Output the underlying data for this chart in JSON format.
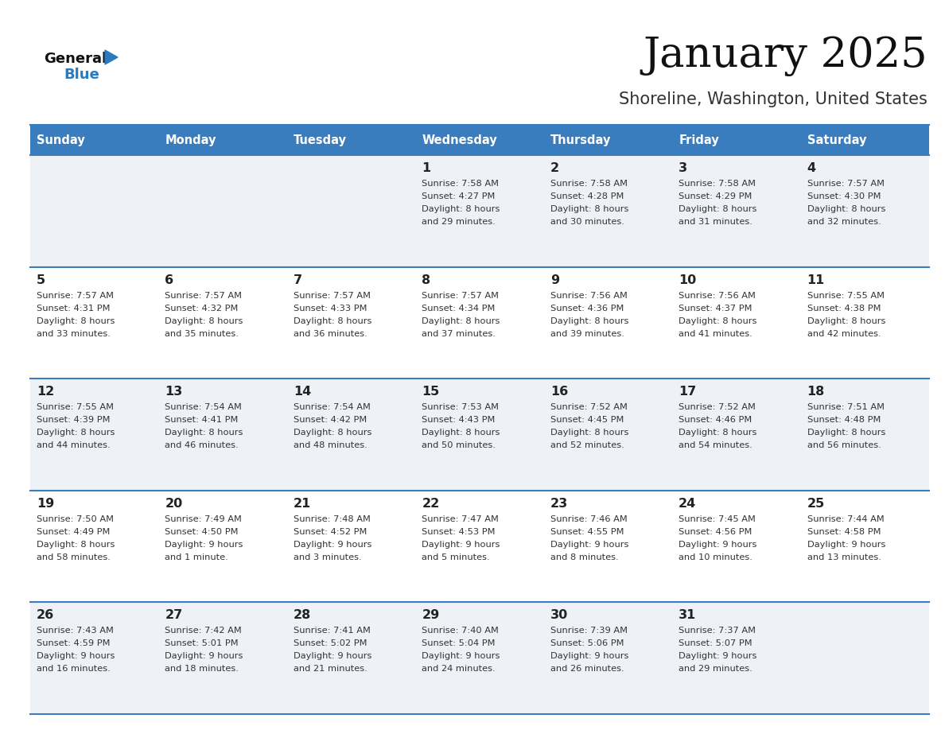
{
  "title": "January 2025",
  "subtitle": "Shoreline, Washington, United States",
  "days_of_week": [
    "Sunday",
    "Monday",
    "Tuesday",
    "Wednesday",
    "Thursday",
    "Friday",
    "Saturday"
  ],
  "header_bg": "#3a7dbf",
  "header_text": "#ffffff",
  "row_bg_odd": "#eef2f7",
  "row_bg_even": "#ffffff",
  "border_color": "#3a7dbf",
  "day_number_color": "#222222",
  "cell_text_color": "#333333",
  "title_color": "#111111",
  "subtitle_color": "#333333",
  "logo_general_color": "#111111",
  "logo_blue_color": "#2a7abf",
  "weeks": [
    [
      {
        "date": "",
        "sunrise": "",
        "sunset": "",
        "daylight_line1": "",
        "daylight_line2": ""
      },
      {
        "date": "",
        "sunrise": "",
        "sunset": "",
        "daylight_line1": "",
        "daylight_line2": ""
      },
      {
        "date": "",
        "sunrise": "",
        "sunset": "",
        "daylight_line1": "",
        "daylight_line2": ""
      },
      {
        "date": "1",
        "sunrise": "7:58 AM",
        "sunset": "4:27 PM",
        "daylight_line1": "Daylight: 8 hours",
        "daylight_line2": "and 29 minutes."
      },
      {
        "date": "2",
        "sunrise": "7:58 AM",
        "sunset": "4:28 PM",
        "daylight_line1": "Daylight: 8 hours",
        "daylight_line2": "and 30 minutes."
      },
      {
        "date": "3",
        "sunrise": "7:58 AM",
        "sunset": "4:29 PM",
        "daylight_line1": "Daylight: 8 hours",
        "daylight_line2": "and 31 minutes."
      },
      {
        "date": "4",
        "sunrise": "7:57 AM",
        "sunset": "4:30 PM",
        "daylight_line1": "Daylight: 8 hours",
        "daylight_line2": "and 32 minutes."
      }
    ],
    [
      {
        "date": "5",
        "sunrise": "7:57 AM",
        "sunset": "4:31 PM",
        "daylight_line1": "Daylight: 8 hours",
        "daylight_line2": "and 33 minutes."
      },
      {
        "date": "6",
        "sunrise": "7:57 AM",
        "sunset": "4:32 PM",
        "daylight_line1": "Daylight: 8 hours",
        "daylight_line2": "and 35 minutes."
      },
      {
        "date": "7",
        "sunrise": "7:57 AM",
        "sunset": "4:33 PM",
        "daylight_line1": "Daylight: 8 hours",
        "daylight_line2": "and 36 minutes."
      },
      {
        "date": "8",
        "sunrise": "7:57 AM",
        "sunset": "4:34 PM",
        "daylight_line1": "Daylight: 8 hours",
        "daylight_line2": "and 37 minutes."
      },
      {
        "date": "9",
        "sunrise": "7:56 AM",
        "sunset": "4:36 PM",
        "daylight_line1": "Daylight: 8 hours",
        "daylight_line2": "and 39 minutes."
      },
      {
        "date": "10",
        "sunrise": "7:56 AM",
        "sunset": "4:37 PM",
        "daylight_line1": "Daylight: 8 hours",
        "daylight_line2": "and 41 minutes."
      },
      {
        "date": "11",
        "sunrise": "7:55 AM",
        "sunset": "4:38 PM",
        "daylight_line1": "Daylight: 8 hours",
        "daylight_line2": "and 42 minutes."
      }
    ],
    [
      {
        "date": "12",
        "sunrise": "7:55 AM",
        "sunset": "4:39 PM",
        "daylight_line1": "Daylight: 8 hours",
        "daylight_line2": "and 44 minutes."
      },
      {
        "date": "13",
        "sunrise": "7:54 AM",
        "sunset": "4:41 PM",
        "daylight_line1": "Daylight: 8 hours",
        "daylight_line2": "and 46 minutes."
      },
      {
        "date": "14",
        "sunrise": "7:54 AM",
        "sunset": "4:42 PM",
        "daylight_line1": "Daylight: 8 hours",
        "daylight_line2": "and 48 minutes."
      },
      {
        "date": "15",
        "sunrise": "7:53 AM",
        "sunset": "4:43 PM",
        "daylight_line1": "Daylight: 8 hours",
        "daylight_line2": "and 50 minutes."
      },
      {
        "date": "16",
        "sunrise": "7:52 AM",
        "sunset": "4:45 PM",
        "daylight_line1": "Daylight: 8 hours",
        "daylight_line2": "and 52 minutes."
      },
      {
        "date": "17",
        "sunrise": "7:52 AM",
        "sunset": "4:46 PM",
        "daylight_line1": "Daylight: 8 hours",
        "daylight_line2": "and 54 minutes."
      },
      {
        "date": "18",
        "sunrise": "7:51 AM",
        "sunset": "4:48 PM",
        "daylight_line1": "Daylight: 8 hours",
        "daylight_line2": "and 56 minutes."
      }
    ],
    [
      {
        "date": "19",
        "sunrise": "7:50 AM",
        "sunset": "4:49 PM",
        "daylight_line1": "Daylight: 8 hours",
        "daylight_line2": "and 58 minutes."
      },
      {
        "date": "20",
        "sunrise": "7:49 AM",
        "sunset": "4:50 PM",
        "daylight_line1": "Daylight: 9 hours",
        "daylight_line2": "and 1 minute."
      },
      {
        "date": "21",
        "sunrise": "7:48 AM",
        "sunset": "4:52 PM",
        "daylight_line1": "Daylight: 9 hours",
        "daylight_line2": "and 3 minutes."
      },
      {
        "date": "22",
        "sunrise": "7:47 AM",
        "sunset": "4:53 PM",
        "daylight_line1": "Daylight: 9 hours",
        "daylight_line2": "and 5 minutes."
      },
      {
        "date": "23",
        "sunrise": "7:46 AM",
        "sunset": "4:55 PM",
        "daylight_line1": "Daylight: 9 hours",
        "daylight_line2": "and 8 minutes."
      },
      {
        "date": "24",
        "sunrise": "7:45 AM",
        "sunset": "4:56 PM",
        "daylight_line1": "Daylight: 9 hours",
        "daylight_line2": "and 10 minutes."
      },
      {
        "date": "25",
        "sunrise": "7:44 AM",
        "sunset": "4:58 PM",
        "daylight_line1": "Daylight: 9 hours",
        "daylight_line2": "and 13 minutes."
      }
    ],
    [
      {
        "date": "26",
        "sunrise": "7:43 AM",
        "sunset": "4:59 PM",
        "daylight_line1": "Daylight: 9 hours",
        "daylight_line2": "and 16 minutes."
      },
      {
        "date": "27",
        "sunrise": "7:42 AM",
        "sunset": "5:01 PM",
        "daylight_line1": "Daylight: 9 hours",
        "daylight_line2": "and 18 minutes."
      },
      {
        "date": "28",
        "sunrise": "7:41 AM",
        "sunset": "5:02 PM",
        "daylight_line1": "Daylight: 9 hours",
        "daylight_line2": "and 21 minutes."
      },
      {
        "date": "29",
        "sunrise": "7:40 AM",
        "sunset": "5:04 PM",
        "daylight_line1": "Daylight: 9 hours",
        "daylight_line2": "and 24 minutes."
      },
      {
        "date": "30",
        "sunrise": "7:39 AM",
        "sunset": "5:06 PM",
        "daylight_line1": "Daylight: 9 hours",
        "daylight_line2": "and 26 minutes."
      },
      {
        "date": "31",
        "sunrise": "7:37 AM",
        "sunset": "5:07 PM",
        "daylight_line1": "Daylight: 9 hours",
        "daylight_line2": "and 29 minutes."
      },
      {
        "date": "",
        "sunrise": "",
        "sunset": "",
        "daylight_line1": "",
        "daylight_line2": ""
      }
    ]
  ]
}
